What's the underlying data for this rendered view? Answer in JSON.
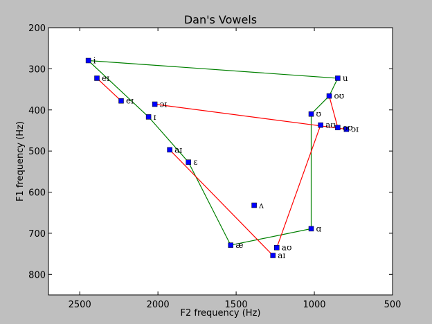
{
  "chart_data": {
    "type": "scatter",
    "title": "Dan's Vowels",
    "xlabel": "F2 frequency (Hz)",
    "ylabel": "F1 frequency (Hz)",
    "xlim": [
      2700,
      500
    ],
    "ylim": [
      850,
      200
    ],
    "x_reversed": true,
    "y_reversed": true,
    "xticks": [
      2500,
      2000,
      1500,
      1000,
      500
    ],
    "yticks": [
      200,
      300,
      400,
      500,
      600,
      700,
      800
    ],
    "grid": false,
    "marker_color": "#0000ff",
    "points": [
      {
        "label": "i",
        "x": 2445,
        "y": 280
      },
      {
        "label": "eɪ",
        "x": 2390,
        "y": 323
      },
      {
        "label": "eɪ",
        "x": 2235,
        "y": 378
      },
      {
        "label": "ɔɪ",
        "x": 2020,
        "y": 386
      },
      {
        "label": "ɪ",
        "x": 2060,
        "y": 417
      },
      {
        "label": "aɪ",
        "x": 1925,
        "y": 497
      },
      {
        "label": "ɛ",
        "x": 1805,
        "y": 527
      },
      {
        "label": "ʌ",
        "x": 1385,
        "y": 632
      },
      {
        "label": "æ",
        "x": 1535,
        "y": 729
      },
      {
        "label": "aʊ",
        "x": 1240,
        "y": 735
      },
      {
        "label": "aɪ",
        "x": 1265,
        "y": 754
      },
      {
        "label": "ɑ",
        "x": 1020,
        "y": 689
      },
      {
        "label": "ʊ",
        "x": 1020,
        "y": 410
      },
      {
        "label": "aʊ",
        "x": 960,
        "y": 437
      },
      {
        "label": "oʊ",
        "x": 905,
        "y": 366
      },
      {
        "label": "u",
        "x": 850,
        "y": 323
      },
      {
        "label": "oʊ",
        "x": 850,
        "y": 443
      },
      {
        "label": "ɔɪ",
        "x": 795,
        "y": 447
      }
    ],
    "lines": [
      {
        "color": "#008000",
        "points": [
          [
            2445,
            280
          ],
          [
            850,
            323
          ],
          [
            905,
            366
          ],
          [
            1020,
            410
          ],
          [
            1020,
            689
          ],
          [
            1535,
            729
          ],
          [
            1805,
            527
          ],
          [
            2060,
            417
          ],
          [
            2445,
            280
          ]
        ]
      },
      {
        "color": "#ff0000",
        "points": [
          [
            2390,
            323
          ],
          [
            2235,
            378
          ]
        ]
      },
      {
        "color": "#ff0000",
        "points": [
          [
            2020,
            386
          ],
          [
            795,
            447
          ]
        ]
      },
      {
        "color": "#ff0000",
        "points": [
          [
            1925,
            497
          ],
          [
            1265,
            754
          ]
        ]
      },
      {
        "color": "#ff0000",
        "points": [
          [
            1240,
            735
          ],
          [
            960,
            437
          ]
        ]
      },
      {
        "color": "#ff0000",
        "points": [
          [
            905,
            366
          ],
          [
            850,
            443
          ]
        ]
      }
    ]
  }
}
